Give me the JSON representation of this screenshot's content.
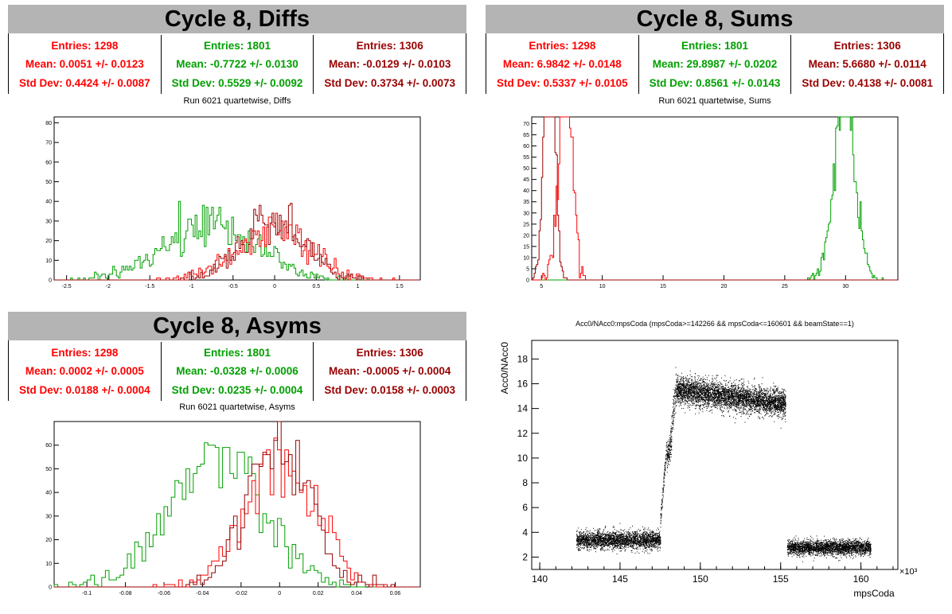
{
  "colors": {
    "red": "#ff0000",
    "green": "#00a000",
    "darkred": "#990000",
    "title_bg": "#b4b4b4"
  },
  "panels": {
    "diffs": {
      "title": "Cycle 8, Diffs",
      "subtitle": "Run 6021 quartetwise, Diffs",
      "stats": [
        {
          "entries": "Entries: 1298",
          "mean": "Mean: 0.0051 +/- 0.0123",
          "std": "Std Dev: 0.4424 +/- 0.0087",
          "color": "#ff0000"
        },
        {
          "entries": "Entries: 1801",
          "mean": "Mean: -0.7722 +/- 0.0130",
          "std": "Std Dev: 0.5529 +/- 0.0092",
          "color": "#00a000"
        },
        {
          "entries": "Entries: 1306",
          "mean": "Mean: -0.0129 +/- 0.0103",
          "std": "Std Dev: 0.3734 +/- 0.0073",
          "color": "#990000"
        }
      ]
    },
    "sums": {
      "title": "Cycle 8, Sums",
      "subtitle": "Run 6021 quartetwise, Sums",
      "stats": [
        {
          "entries": "Entries: 1298",
          "mean": "Mean: 6.9842 +/- 0.0148",
          "std": "Std Dev: 0.5337 +/- 0.0105",
          "color": "#ff0000"
        },
        {
          "entries": "Entries: 1801",
          "mean": "Mean: 29.8987 +/- 0.0202",
          "std": "Std Dev: 0.8561 +/- 0.0143",
          "color": "#00a000"
        },
        {
          "entries": "Entries: 1306",
          "mean": "Mean: 5.6680 +/- 0.0114",
          "std": "Std Dev: 0.4138 +/- 0.0081",
          "color": "#990000"
        }
      ]
    },
    "asyms": {
      "title": "Cycle 8, Asyms",
      "subtitle": "Run 6021 quartetwise, Asyms",
      "stats": [
        {
          "entries": "Entries: 1298",
          "mean": "Mean: 0.0002 +/- 0.0005",
          "std": "Std Dev: 0.0188 +/- 0.0004",
          "color": "#ff0000"
        },
        {
          "entries": "Entries: 1801",
          "mean": "Mean: -0.0328 +/- 0.0006",
          "std": "Std Dev: 0.0235 +/- 0.0004",
          "color": "#00a000"
        },
        {
          "entries": "Entries: 1306",
          "mean": "Mean: -0.0005 +/- 0.0004",
          "std": "Std Dev: 0.0158 +/- 0.0003",
          "color": "#990000"
        }
      ]
    },
    "scatter": {
      "subtitle": "Acc0/NAcc0:mpsCoda (mpsCoda>=142266 && mpsCoda<=160601 && beamState==1)",
      "xlabel": "mpsCoda",
      "ylabel": "Acc0/NAcc0",
      "exponent": "×10³"
    }
  },
  "chart_data": [
    {
      "type": "histogram",
      "name": "diffs",
      "xlim": [
        -2.65,
        1.75
      ],
      "ylim": [
        0,
        83
      ],
      "xticks": [
        "-2.5",
        "-2",
        "-1.5",
        "-1",
        "-0.5",
        "0",
        "0.5",
        "1",
        "1.5"
      ],
      "xtick_values": [
        -2.5,
        -2,
        -1.5,
        -1,
        -0.5,
        0,
        0.5,
        1,
        1.5
      ],
      "yticks": [
        0,
        10,
        20,
        30,
        40,
        50,
        60,
        70,
        80
      ],
      "series": [
        {
          "color": "#00a000",
          "mean": -0.7722,
          "sd": 0.5529,
          "n": 1801,
          "bins": 200
        },
        {
          "color": "#ff0000",
          "mean": 0.0051,
          "sd": 0.4424,
          "n": 1298,
          "bins": 200
        },
        {
          "color": "#990000",
          "mean": -0.0129,
          "sd": 0.3734,
          "n": 1306,
          "bins": 200
        }
      ]
    },
    {
      "type": "histogram",
      "name": "sums",
      "xlim": [
        4.2,
        34.3
      ],
      "ylim": [
        0,
        73
      ],
      "xticks": [
        "5",
        "10",
        "15",
        "20",
        "25",
        "30"
      ],
      "xtick_values": [
        5,
        10,
        15,
        20,
        25,
        30
      ],
      "yticks": [
        0,
        5,
        10,
        15,
        20,
        25,
        30,
        35,
        40,
        45,
        50,
        55,
        60,
        65,
        70
      ],
      "series": [
        {
          "color": "#00a000",
          "mean": 29.8987,
          "sd": 0.8561,
          "n": 1801,
          "bins": 300
        },
        {
          "color": "#ff0000",
          "mean": 6.9842,
          "sd": 0.5337,
          "n": 1298,
          "bins": 300
        },
        {
          "color": "#990000",
          "mean": 5.668,
          "sd": 0.4138,
          "n": 1306,
          "bins": 300
        }
      ]
    },
    {
      "type": "histogram",
      "name": "asyms",
      "xlim": [
        -0.117,
        0.073
      ],
      "ylim": [
        0,
        70
      ],
      "xticks": [
        "-0.1",
        "-0.08",
        "-0.06",
        "-0.04",
        "-0.02",
        "0",
        "0.02",
        "0.04",
        "0.06"
      ],
      "xtick_values": [
        -0.1,
        -0.08,
        -0.06,
        -0.04,
        -0.02,
        0,
        0.02,
        0.04,
        0.06
      ],
      "yticks": [
        0,
        10,
        20,
        30,
        40,
        50,
        60
      ],
      "series": [
        {
          "color": "#00a000",
          "mean": -0.0328,
          "sd": 0.0235,
          "n": 1801,
          "bins": 100
        },
        {
          "color": "#ff0000",
          "mean": 0.0002,
          "sd": 0.0188,
          "n": 1298,
          "bins": 100
        },
        {
          "color": "#990000",
          "mean": -0.0005,
          "sd": 0.0158,
          "n": 1306,
          "bins": 100
        }
      ]
    },
    {
      "type": "scatter",
      "name": "acc0-vs-mpscoda",
      "xlim": [
        139.5,
        162.3
      ],
      "ylim": [
        1.0,
        19.5
      ],
      "xticks": [
        "140",
        "145",
        "150",
        "155",
        "160"
      ],
      "xtick_values": [
        140,
        145,
        150,
        155,
        160
      ],
      "yticks": [
        "2",
        "4",
        "6",
        "8",
        "10",
        "12",
        "14",
        "16",
        "18"
      ],
      "ytick_values": [
        2,
        4,
        6,
        8,
        10,
        12,
        14,
        16,
        18
      ],
      "segments": [
        {
          "x0": 142.27,
          "x1": 147.5,
          "y0": 3.4,
          "y1": 3.4,
          "sd": 0.35,
          "n": 2600
        },
        {
          "x0": 147.5,
          "x1": 147.9,
          "y0": 5.0,
          "y1": 11.0,
          "sd": 0.35,
          "n": 120
        },
        {
          "x0": 147.9,
          "x1": 148.2,
          "y0": 10.0,
          "y1": 11.5,
          "sd": 0.6,
          "n": 160
        },
        {
          "x0": 148.2,
          "x1": 148.5,
          "y0": 13.0,
          "y1": 15.5,
          "sd": 0.7,
          "n": 100
        },
        {
          "x0": 148.5,
          "x1": 155.3,
          "y0": 15.5,
          "y1": 14.4,
          "sd": 0.55,
          "n": 4200
        },
        {
          "x0": 155.4,
          "x1": 160.6,
          "y0": 2.8,
          "y1": 2.8,
          "sd": 0.3,
          "n": 2600
        }
      ]
    }
  ]
}
